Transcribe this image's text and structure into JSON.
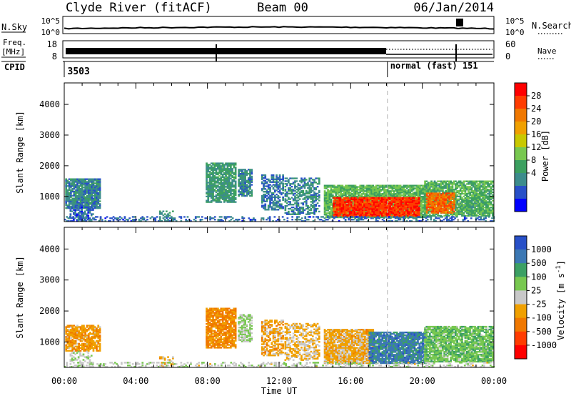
{
  "header": {
    "title": "Clyde River (fitACF)",
    "beam": "Beam 00",
    "date": "06/Jan/2014"
  },
  "strips": {
    "nsky_label": "N.Sky",
    "nsky_ticks": [
      "10^5",
      "10^0"
    ],
    "nsearch_label": "N.Search",
    "nsearch_ticks": [
      "10^5",
      "10^0"
    ],
    "freq_label_1": "Freq.",
    "freq_label_2": "[MHz]",
    "freq_ticks": [
      "18",
      "8"
    ],
    "nave_label": "Nave",
    "nave_ticks": [
      "60",
      "0"
    ],
    "cpid_label": "CPID",
    "cpid_values": [
      {
        "text": "3503",
        "time": 0.1
      },
      {
        "text": "normal (fast) 151",
        "time": 18.05
      }
    ]
  },
  "colors": {
    "sky_trace": "#000000",
    "dashed_line": "#b0b0b0"
  },
  "chart_data": [
    {
      "type": "heatmap",
      "name": "power",
      "ylabel": "Slant Range [km]",
      "ylim": [
        180,
        4700
      ],
      "xlim": [
        0,
        24
      ],
      "y_ticks": [
        1000,
        2000,
        3000,
        4000
      ],
      "colorbar_label": "Power [dB]",
      "colorbar_ticks": [
        "28",
        "24",
        "20",
        "16",
        "12",
        "8",
        "4"
      ],
      "colorbar_colors": [
        "#ff0000",
        "#ff3c00",
        "#f07800",
        "#f0a000",
        "#c8c800",
        "#78c850",
        "#3ca060",
        "#3c8c8c",
        "#2850c8",
        "#0000ff"
      ],
      "regions": [
        {
          "t0": 0.05,
          "t1": 2.0,
          "r0": 600,
          "r1": 1550,
          "v": 8,
          "density": 0.9
        },
        {
          "t0": 0.3,
          "t1": 1.6,
          "r0": 180,
          "r1": 650,
          "v": 5,
          "density": 0.6
        },
        {
          "t0": 5.3,
          "t1": 6.1,
          "r0": 180,
          "r1": 500,
          "v": 10,
          "density": 0.5
        },
        {
          "t0": 7.9,
          "t1": 9.6,
          "r0": 800,
          "r1": 2100,
          "v": 10,
          "density": 0.85
        },
        {
          "t0": 9.7,
          "t1": 10.5,
          "r0": 1000,
          "r1": 1900,
          "v": 8,
          "density": 0.8
        },
        {
          "t0": 11.0,
          "t1": 12.2,
          "r0": 550,
          "r1": 1700,
          "v": 7,
          "density": 0.6
        },
        {
          "t0": 12.3,
          "t1": 14.2,
          "r0": 400,
          "r1": 1600,
          "v": 8,
          "density": 0.55
        },
        {
          "t0": 14.5,
          "t1": 20.2,
          "r0": 300,
          "r1": 1350,
          "v": 13,
          "density": 0.9
        },
        {
          "t0": 15.0,
          "t1": 19.8,
          "r0": 350,
          "r1": 950,
          "v": 28,
          "density": 0.95
        },
        {
          "t0": 20.1,
          "t1": 23.9,
          "r0": 350,
          "r1": 1500,
          "v": 12,
          "density": 0.85
        },
        {
          "t0": 20.2,
          "t1": 21.8,
          "r0": 450,
          "r1": 1100,
          "v": 25,
          "density": 0.8
        },
        {
          "t0": 0.0,
          "t1": 24.0,
          "r0": 180,
          "r1": 320,
          "v": 6,
          "density": 0.35
        }
      ]
    },
    {
      "type": "heatmap",
      "name": "velocity",
      "ylabel": "Slant Range [km]",
      "ylim": [
        180,
        4700
      ],
      "xlim": [
        0,
        24
      ],
      "y_ticks": [
        1000,
        2000,
        3000,
        4000
      ],
      "colorbar_label": "Velocity [m s^-1]",
      "colorbar_ticks": [
        "1000",
        "500",
        "100",
        "25",
        "-25",
        "-100",
        "-500",
        "-1000"
      ],
      "colorbar_colors": [
        "#2850c8",
        "#3c78b4",
        "#3ca064",
        "#78c850",
        "#c8c8c8",
        "#f0a000",
        "#f07800",
        "#ff3c00",
        "#ff0000"
      ],
      "regions": [
        {
          "t0": 0.05,
          "t1": 2.0,
          "r0": 700,
          "r1": 1550,
          "v": -300,
          "density": 0.8
        },
        {
          "t0": 0.3,
          "t1": 1.6,
          "r0": 180,
          "r1": 700,
          "v": 80,
          "density": 0.4
        },
        {
          "t0": 5.3,
          "t1": 6.1,
          "r0": 180,
          "r1": 500,
          "v": -200,
          "density": 0.4
        },
        {
          "t0": 7.9,
          "t1": 9.6,
          "r0": 800,
          "r1": 2100,
          "v": -400,
          "density": 0.85
        },
        {
          "t0": 9.7,
          "t1": 10.5,
          "r0": 1000,
          "r1": 1900,
          "v": 150,
          "density": 0.75
        },
        {
          "t0": 11.0,
          "t1": 12.2,
          "r0": 550,
          "r1": 1700,
          "v": -250,
          "density": 0.6
        },
        {
          "t0": 12.3,
          "t1": 14.2,
          "r0": 400,
          "r1": 1600,
          "v": -150,
          "density": 0.55
        },
        {
          "t0": 14.5,
          "t1": 17.2,
          "r0": 300,
          "r1": 1400,
          "v": -200,
          "density": 0.9
        },
        {
          "t0": 17.0,
          "t1": 20.2,
          "r0": 300,
          "r1": 1300,
          "v": 700,
          "density": 0.9
        },
        {
          "t0": 20.1,
          "t1": 23.9,
          "r0": 350,
          "r1": 1500,
          "v": 300,
          "density": 0.85
        },
        {
          "t0": 0.0,
          "t1": 24.0,
          "r0": 180,
          "r1": 320,
          "v": 60,
          "density": 0.3
        }
      ]
    }
  ],
  "x_axis": {
    "label": "Time UT",
    "ticks": [
      "00:00",
      "04:00",
      "08:00",
      "12:00",
      "16:00",
      "20:00",
      "00:00"
    ]
  }
}
